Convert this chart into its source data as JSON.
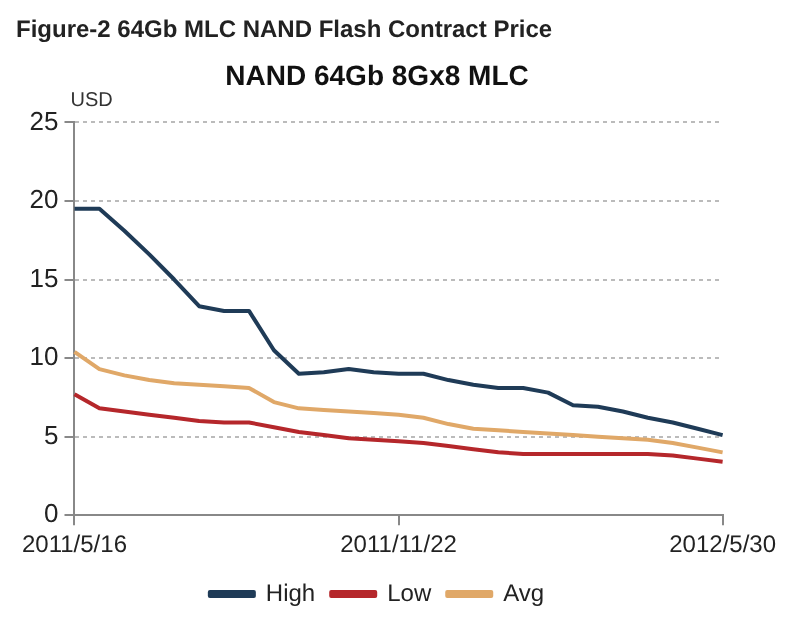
{
  "chart_data": {
    "type": "line",
    "title": "Figure-2 64Gb MLC NAND Flash Contract Price",
    "subtitle": "NAND 64Gb 8Gx8 MLC",
    "ylabel": "USD",
    "categories": [
      "2011/5/16",
      null,
      null,
      null,
      null,
      null,
      null,
      null,
      null,
      null,
      null,
      null,
      null,
      "2011/11/22",
      null,
      null,
      null,
      null,
      null,
      null,
      null,
      null,
      null,
      null,
      null,
      null,
      "2012/5/30"
    ],
    "series": [
      {
        "name": "High",
        "color": "#1f3b57",
        "values": [
          19.5,
          19.5,
          18.1,
          16.6,
          15.0,
          13.3,
          13,
          13,
          10.5,
          9,
          9.1,
          9.3,
          9.1,
          9.0,
          9.0,
          8.6,
          8.3,
          8.1,
          8.1,
          7.8,
          7.0,
          6.9,
          6.6,
          6.2,
          5.9,
          5.5,
          5.1
        ]
      },
      {
        "name": "Low",
        "color": "#b5272b",
        "values": [
          7.7,
          6.8,
          6.6,
          6.4,
          6.2,
          6.0,
          5.9,
          5.9,
          5.6,
          5.3,
          5.1,
          4.9,
          4.8,
          4.7,
          4.6,
          4.4,
          4.2,
          4.0,
          3.9,
          3.9,
          3.9,
          3.9,
          3.9,
          3.9,
          3.8,
          3.6,
          3.4
        ]
      },
      {
        "name": "Avg",
        "color": "#e0a868",
        "values": [
          10.4,
          9.3,
          8.9,
          8.6,
          8.4,
          8.3,
          8.2,
          8.1,
          7.2,
          6.8,
          6.7,
          6.6,
          6.5,
          6.4,
          6.2,
          5.8,
          5.5,
          5.4,
          5.3,
          5.2,
          5.1,
          5.0,
          4.9,
          4.8,
          4.6,
          4.3,
          4.0
        ]
      }
    ],
    "ylim": [
      0,
      25
    ],
    "yticks": [
      0,
      5,
      10,
      15,
      20,
      25
    ],
    "grid": "y",
    "legend": "bottom",
    "marker": "none",
    "line_style": "solid"
  }
}
